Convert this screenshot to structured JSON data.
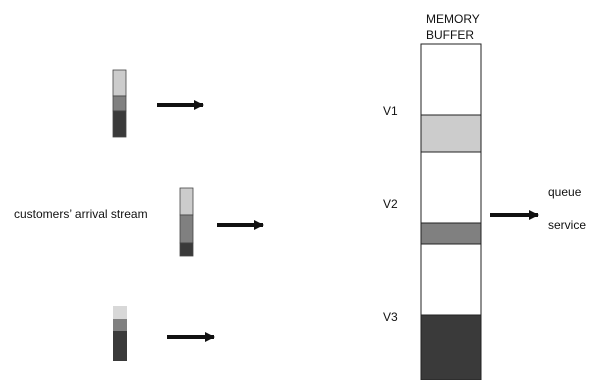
{
  "buffer": {
    "title_line1": "MEMORY",
    "title_line2": "BUFFER",
    "sections": [
      "V1",
      "V2",
      "V3"
    ]
  },
  "stream_label": "customers’ arrival stream",
  "outputs": {
    "top": "queue",
    "bottom": "service"
  },
  "colors": {
    "light": "#cccccc",
    "mid": "#808080",
    "dark": "#3a3a3a",
    "very_light": "#d8d8d8",
    "arrow": "#111111",
    "outline": "#222222"
  }
}
